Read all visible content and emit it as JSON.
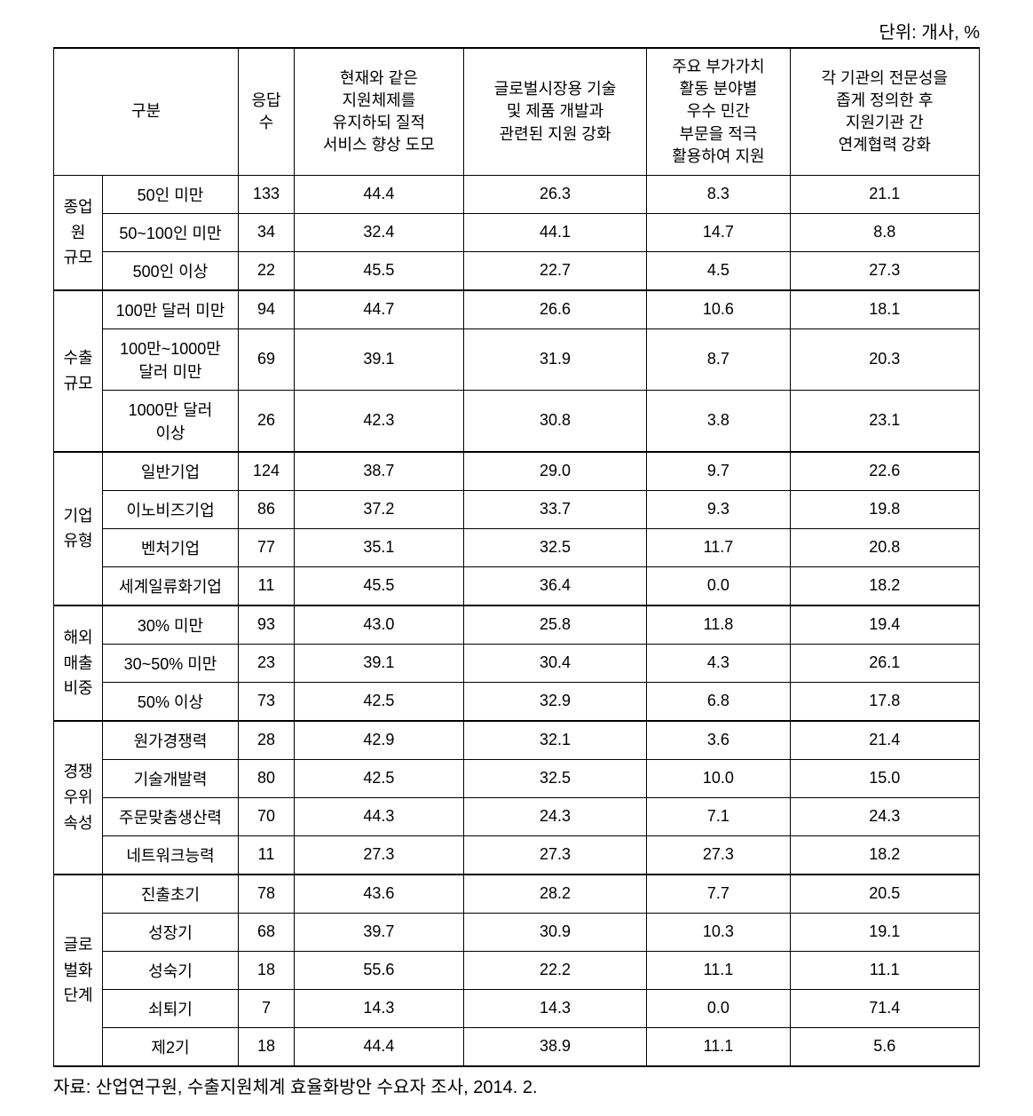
{
  "unit_label": "단위: 개사, %",
  "headers": {
    "category": "구분",
    "count": "응답\n수",
    "col1": "현재와 같은\n지원체제를\n유지하되 질적\n서비스 향상 도모",
    "col2": "글로벌시장용 기술\n및 제품 개발과\n관련된 지원 강화",
    "col3": "주요 부가가치\n활동 분야별\n우수 민간\n부문을 적극\n활용하여 지원",
    "col4": "각 기관의 전문성을\n좁게 정의한 후\n지원기관 간\n연계협력 강화"
  },
  "groups": [
    {
      "label": "종업\n원\n규모",
      "rows": [
        {
          "name": "50인 미만",
          "count": 133,
          "v1": "44.4",
          "v2": "26.3",
          "v3": "8.3",
          "v4": "21.1"
        },
        {
          "name": "50~100인 미만",
          "count": 34,
          "v1": "32.4",
          "v2": "44.1",
          "v3": "14.7",
          "v4": "8.8"
        },
        {
          "name": "500인 이상",
          "count": 22,
          "v1": "45.5",
          "v2": "22.7",
          "v3": "4.5",
          "v4": "27.3"
        }
      ]
    },
    {
      "label": "수출\n규모",
      "rows": [
        {
          "name": "100만 달러 미만",
          "count": 94,
          "v1": "44.7",
          "v2": "26.6",
          "v3": "10.6",
          "v4": "18.1"
        },
        {
          "name": "100만~1000만\n달러 미만",
          "count": 69,
          "v1": "39.1",
          "v2": "31.9",
          "v3": "8.7",
          "v4": "20.3"
        },
        {
          "name": "1000만 달러\n이상",
          "count": 26,
          "v1": "42.3",
          "v2": "30.8",
          "v3": "3.8",
          "v4": "23.1"
        }
      ]
    },
    {
      "label": "기업\n유형",
      "rows": [
        {
          "name": "일반기업",
          "count": 124,
          "v1": "38.7",
          "v2": "29.0",
          "v3": "9.7",
          "v4": "22.6"
        },
        {
          "name": "이노비즈기업",
          "count": 86,
          "v1": "37.2",
          "v2": "33.7",
          "v3": "9.3",
          "v4": "19.8"
        },
        {
          "name": "벤처기업",
          "count": 77,
          "v1": "35.1",
          "v2": "32.5",
          "v3": "11.7",
          "v4": "20.8"
        },
        {
          "name": "세계일류화기업",
          "count": 11,
          "v1": "45.5",
          "v2": "36.4",
          "v3": "0.0",
          "v4": "18.2"
        }
      ]
    },
    {
      "label": "해외\n매출\n비중",
      "rows": [
        {
          "name": "30% 미만",
          "count": 93,
          "v1": "43.0",
          "v2": "25.8",
          "v3": "11.8",
          "v4": "19.4"
        },
        {
          "name": "30~50% 미만",
          "count": 23,
          "v1": "39.1",
          "v2": "30.4",
          "v3": "4.3",
          "v4": "26.1"
        },
        {
          "name": "50% 이상",
          "count": 73,
          "v1": "42.5",
          "v2": "32.9",
          "v3": "6.8",
          "v4": "17.8"
        }
      ]
    },
    {
      "label": "경쟁\n우위\n속성",
      "rows": [
        {
          "name": "원가경쟁력",
          "count": 28,
          "v1": "42.9",
          "v2": "32.1",
          "v3": "3.6",
          "v4": "21.4"
        },
        {
          "name": "기술개발력",
          "count": 80,
          "v1": "42.5",
          "v2": "32.5",
          "v3": "10.0",
          "v4": "15.0"
        },
        {
          "name": "주문맞춤생산력",
          "count": 70,
          "v1": "44.3",
          "v2": "24.3",
          "v3": "7.1",
          "v4": "24.3"
        },
        {
          "name": "네트워크능력",
          "count": 11,
          "v1": "27.3",
          "v2": "27.3",
          "v3": "27.3",
          "v4": "18.2"
        }
      ]
    },
    {
      "label": "글로\n벌화\n단계",
      "rows": [
        {
          "name": "진출초기",
          "count": 78,
          "v1": "43.6",
          "v2": "28.2",
          "v3": "7.7",
          "v4": "20.5"
        },
        {
          "name": "성장기",
          "count": 68,
          "v1": "39.7",
          "v2": "30.9",
          "v3": "10.3",
          "v4": "19.1"
        },
        {
          "name": "성숙기",
          "count": 18,
          "v1": "55.6",
          "v2": "22.2",
          "v3": "11.1",
          "v4": "11.1"
        },
        {
          "name": "쇠퇴기",
          "count": 7,
          "v1": "14.3",
          "v2": "14.3",
          "v3": "0.0",
          "v4": "71.4"
        },
        {
          "name": "제2기",
          "count": 18,
          "v1": "44.4",
          "v2": "38.9",
          "v3": "11.1",
          "v4": "5.6"
        }
      ]
    }
  ],
  "source": "자료: 산업연구원, 수출지원체계 효율화방안 수요자 조사, 2014. 2."
}
